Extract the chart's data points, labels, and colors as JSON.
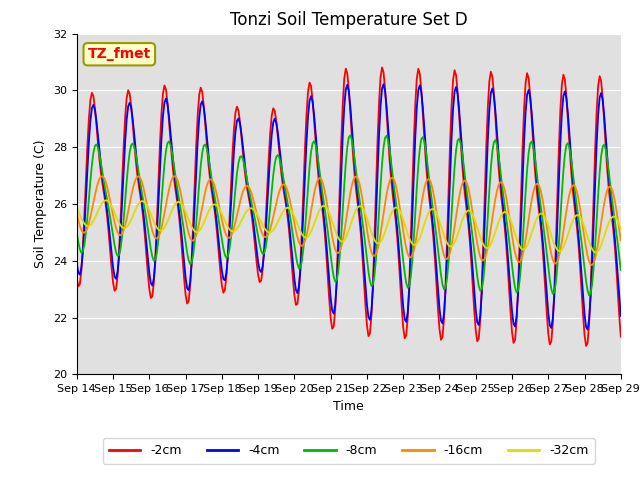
{
  "title": "Tonzi Soil Temperature Set D",
  "xlabel": "Time",
  "ylabel": "Soil Temperature (C)",
  "annotation": "TZ_fmet",
  "ylim": [
    20,
    32
  ],
  "n_days": 15,
  "xtick_labels": [
    "Sep 14",
    "Sep 15",
    "Sep 16",
    "Sep 17",
    "Sep 18",
    "Sep 19",
    "Sep 20",
    "Sep 21",
    "Sep 22",
    "Sep 23",
    "Sep 24",
    "Sep 25",
    "Sep 26",
    "Sep 27",
    "Sep 28",
    "Sep 29"
  ],
  "series_labels": [
    "-2cm",
    "-4cm",
    "-8cm",
    "-16cm",
    "-32cm"
  ],
  "series_colors": [
    "#ff0000",
    "#0000ff",
    "#00bb00",
    "#ff8800",
    "#dddd00"
  ],
  "line_width": 1.3,
  "bg_color": "#e0e0e0",
  "title_fontsize": 12,
  "axis_fontsize": 9,
  "tick_fontsize": 8,
  "legend_fontsize": 9
}
